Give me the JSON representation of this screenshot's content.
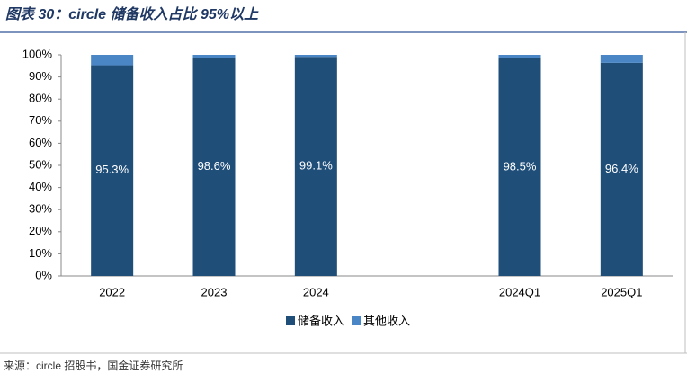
{
  "chart_data": {
    "type": "stacked_bar",
    "title": "图表 30：circle 储备收入占比 95%以上",
    "source": "来源：circle 招股书，国金证券研究所",
    "categories": [
      "2022",
      "2023",
      "2024",
      null,
      "2024Q1",
      "2025Q1"
    ],
    "series": [
      {
        "name": "储备收入",
        "color": "#1f4e79",
        "values": [
          95.3,
          98.6,
          99.1,
          null,
          98.5,
          96.4
        ],
        "value_labels": [
          "95.3%",
          "98.6%",
          "99.1%",
          null,
          "98.5%",
          "96.4%"
        ]
      },
      {
        "name": "其他收入",
        "color": "#4a86c5",
        "values": [
          4.7,
          1.4,
          0.9,
          null,
          1.5,
          3.6
        ]
      }
    ],
    "ylim": [
      0,
      100
    ],
    "yticks": [
      {
        "value": 0,
        "label": "0%"
      },
      {
        "value": 10,
        "label": "10%"
      },
      {
        "value": 20,
        "label": "20%"
      },
      {
        "value": 30,
        "label": "30%"
      },
      {
        "value": 40,
        "label": "40%"
      },
      {
        "value": 50,
        "label": "50%"
      },
      {
        "value": 60,
        "label": "60%"
      },
      {
        "value": 70,
        "label": "70%"
      },
      {
        "value": 80,
        "label": "80%"
      },
      {
        "value": 90,
        "label": "90%"
      },
      {
        "value": 100,
        "label": "100%"
      }
    ],
    "legend": "bottom"
  }
}
